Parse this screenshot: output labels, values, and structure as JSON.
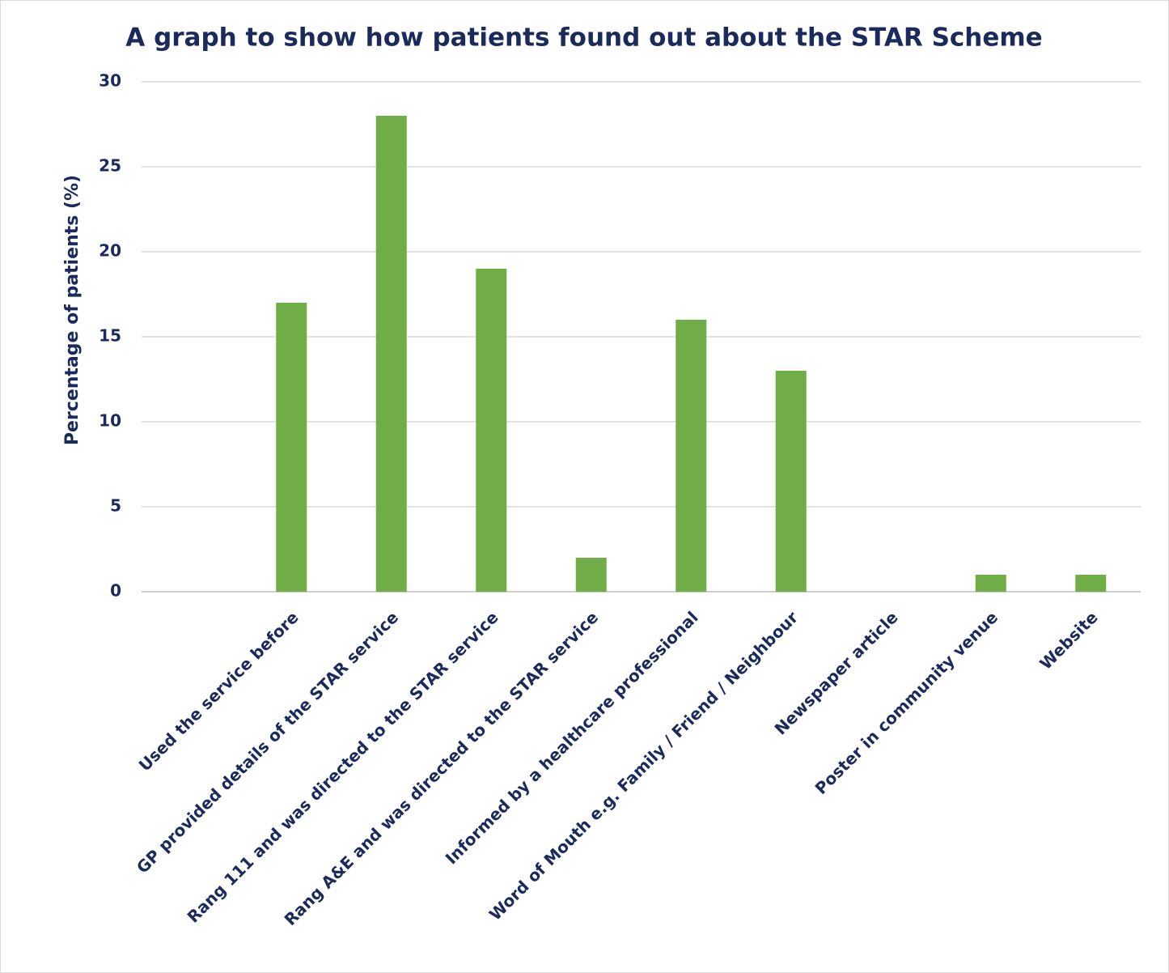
{
  "chart_data": {
    "type": "bar",
    "title": "A graph to show how patients found out about the STAR Scheme",
    "y_label": "Percentage of patients (%)",
    "categories": [
      null,
      "Used the service before",
      "GP provided details of the STAR service",
      "Rang 111 and was directed to the STAR service",
      "Rang A&E and was directed to the STAR service",
      "Informed by a healthcare professional",
      "Word of Mouth e.g. Family / Friend / Neighbour",
      "Newspaper article",
      "Poster in community venue",
      "Website"
    ],
    "values": [
      null,
      17,
      28,
      19,
      2,
      16,
      13,
      0,
      1,
      1
    ],
    "color": "#70ad47",
    "ylim": [
      0,
      30
    ],
    "yticks": [
      0,
      5,
      10,
      15,
      20,
      25,
      30
    ],
    "grid": true
  }
}
